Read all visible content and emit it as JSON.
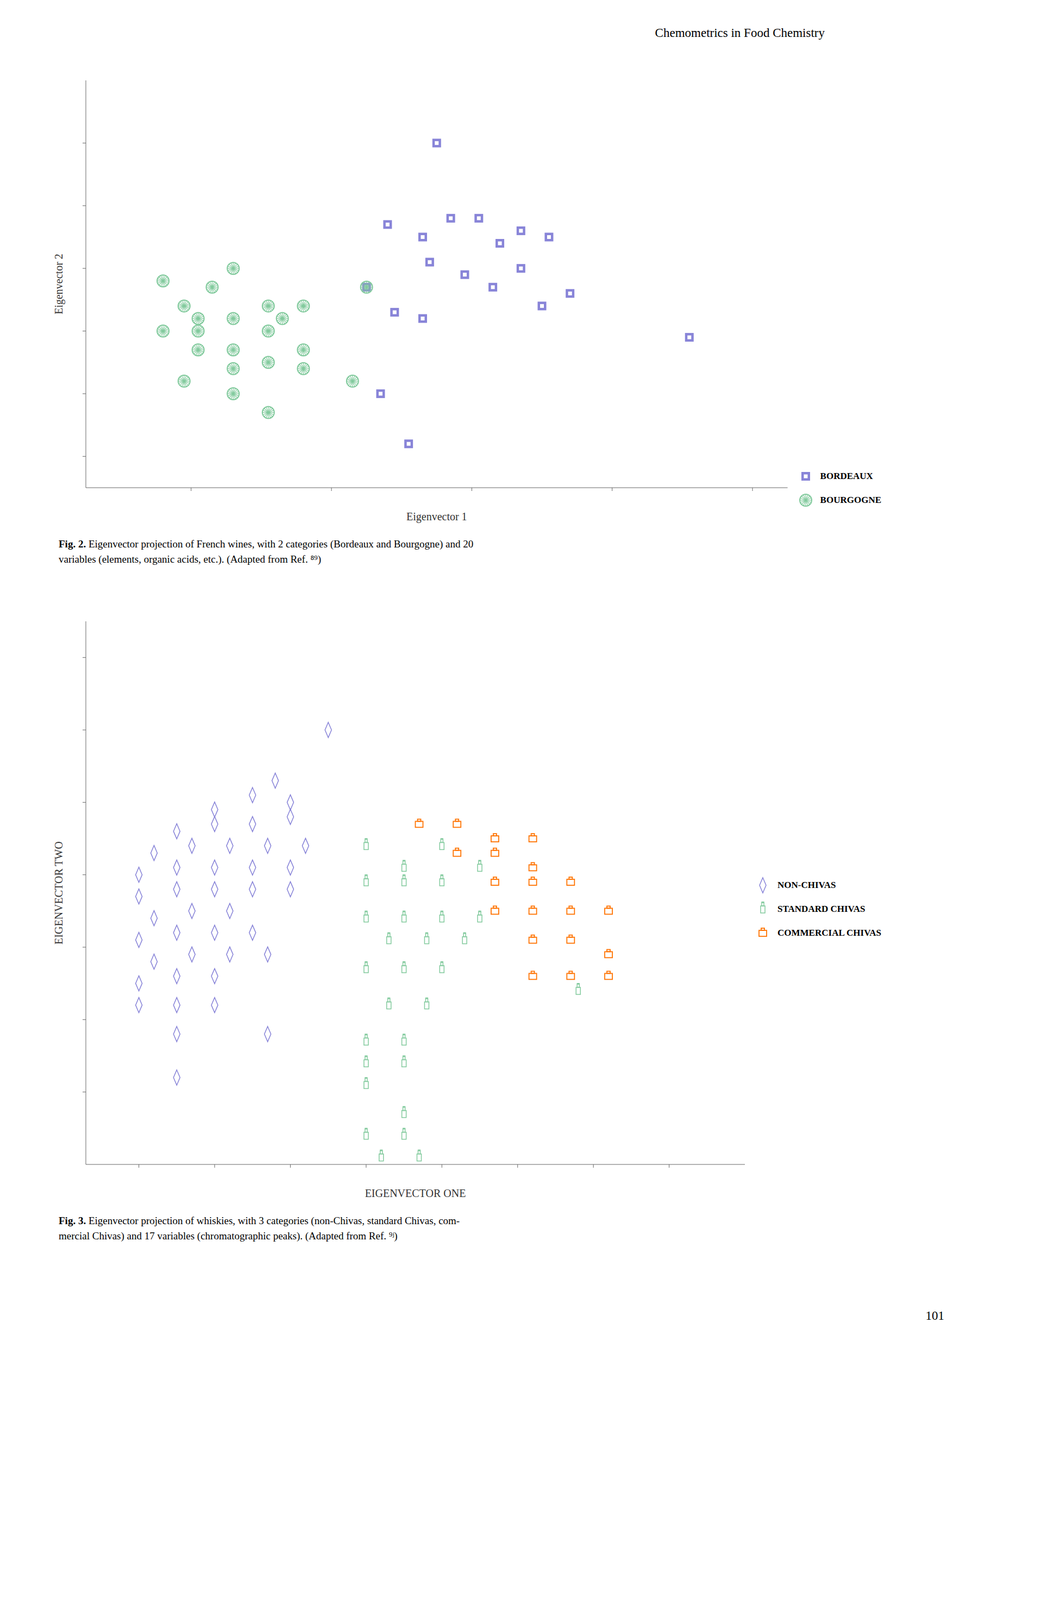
{
  "annotations": [
    "Chemometrics in Food Chemistry",
    "101"
  ],
  "chart_data": [
    {
      "type": "scatter",
      "xlabel": "Eigenvector 1",
      "ylabel": "Eigenvector 2",
      "xlim": [
        0.5,
        10.5
      ],
      "xticks": [
        2,
        4,
        6,
        8,
        10
      ],
      "ylim": [
        0.5,
        7.0
      ],
      "yticks": [
        1,
        2,
        3,
        4,
        5,
        6
      ],
      "tick_labels": false,
      "grid": false,
      "legend": "lower right",
      "annotations": [
        "Fig. 2.",
        "Eigenvector projection of French wines, with 2 categories (Bordeaux and Bourgogne) and 20\nvariables (elements, organic acids, etc.). (Adapted from Ref. ⁸⁹)"
      ],
      "series": [
        {
          "name": "BORDEAUX",
          "marker": "square",
          "values": [
            [
              5.5,
              6.0
            ],
            [
              4.8,
              4.7
            ],
            [
              5.3,
              4.5
            ],
            [
              5.7,
              4.8
            ],
            [
              6.1,
              4.8
            ],
            [
              6.4,
              4.4
            ],
            [
              6.7,
              4.6
            ],
            [
              7.1,
              4.5
            ],
            [
              5.4,
              4.1
            ],
            [
              5.9,
              3.9
            ],
            [
              6.3,
              3.7
            ],
            [
              6.7,
              4.0
            ],
            [
              7.0,
              3.4
            ],
            [
              7.4,
              3.6
            ],
            [
              4.5,
              3.7
            ],
            [
              4.9,
              3.3
            ],
            [
              5.3,
              3.2
            ],
            [
              9.1,
              2.9
            ],
            [
              4.7,
              2.0
            ],
            [
              5.1,
              1.2
            ]
          ]
        },
        {
          "name": "BOURGOGNE",
          "marker": "circle",
          "values": [
            [
              1.6,
              3.8
            ],
            [
              2.3,
              3.7
            ],
            [
              2.6,
              4.0
            ],
            [
              1.9,
              3.4
            ],
            [
              2.1,
              3.2
            ],
            [
              2.6,
              3.2
            ],
            [
              3.1,
              3.4
            ],
            [
              3.3,
              3.2
            ],
            [
              3.6,
              3.4
            ],
            [
              1.6,
              3.0
            ],
            [
              2.1,
              3.0
            ],
            [
              2.6,
              2.7
            ],
            [
              3.1,
              3.0
            ],
            [
              3.6,
              2.7
            ],
            [
              2.1,
              2.7
            ],
            [
              2.6,
              2.4
            ],
            [
              3.1,
              2.5
            ],
            [
              3.6,
              2.4
            ],
            [
              1.9,
              2.2
            ],
            [
              2.6,
              2.0
            ],
            [
              3.1,
              1.7
            ],
            [
              4.5,
              3.7
            ],
            [
              4.3,
              2.2
            ]
          ]
        }
      ]
    },
    {
      "type": "scatter",
      "xlabel": "EIGENVECTOR   ONE",
      "ylabel": "EIGENVECTOR  TWO",
      "xlim": [
        0.3,
        9.0
      ],
      "xticks": [
        1,
        2,
        3,
        4,
        5,
        6,
        7,
        8
      ],
      "ylim": [
        3.0,
        10.5
      ],
      "yticks": [
        4,
        5,
        6,
        7,
        8,
        9,
        10
      ],
      "tick_labels": false,
      "grid": false,
      "legend": "right",
      "annotations": [
        "Fig. 3.",
        "Eigenvector projection of whiskies, with 3 categories (non-Chivas, standard Chivas, com-\nmercial Chivas) and 17 variables (chromatographic peaks). (Adapted from Ref. ⁹ʲ)"
      ],
      "series": [
        {
          "name": "NON-CHIVAS",
          "marker": "diamond",
          "values": [
            [
              3.5,
              9.0
            ],
            [
              2.8,
              8.3
            ],
            [
              2.0,
              7.9
            ],
            [
              2.5,
              8.1
            ],
            [
              3.0,
              8.0
            ],
            [
              1.5,
              7.6
            ],
            [
              2.0,
              7.7
            ],
            [
              2.5,
              7.7
            ],
            [
              3.0,
              7.8
            ],
            [
              1.2,
              7.3
            ],
            [
              1.7,
              7.4
            ],
            [
              2.2,
              7.4
            ],
            [
              2.7,
              7.4
            ],
            [
              3.2,
              7.4
            ],
            [
              1.0,
              7.0
            ],
            [
              1.5,
              7.1
            ],
            [
              2.0,
              7.1
            ],
            [
              2.5,
              7.1
            ],
            [
              3.0,
              7.1
            ],
            [
              1.0,
              6.7
            ],
            [
              1.5,
              6.8
            ],
            [
              2.0,
              6.8
            ],
            [
              2.5,
              6.8
            ],
            [
              3.0,
              6.8
            ],
            [
              1.2,
              6.4
            ],
            [
              1.7,
              6.5
            ],
            [
              2.2,
              6.5
            ],
            [
              1.0,
              6.1
            ],
            [
              1.5,
              6.2
            ],
            [
              2.0,
              6.2
            ],
            [
              2.5,
              6.2
            ],
            [
              1.2,
              5.8
            ],
            [
              1.7,
              5.9
            ],
            [
              2.2,
              5.9
            ],
            [
              2.7,
              5.9
            ],
            [
              1.0,
              5.5
            ],
            [
              1.5,
              5.6
            ],
            [
              2.0,
              5.6
            ],
            [
              1.0,
              5.2
            ],
            [
              1.5,
              5.2
            ],
            [
              2.0,
              5.2
            ],
            [
              1.5,
              4.8
            ],
            [
              2.7,
              4.8
            ],
            [
              1.5,
              4.2
            ]
          ]
        },
        {
          "name": "STANDARD CHIVAS",
          "marker": "bottle",
          "values": [
            [
              4.0,
              7.4
            ],
            [
              4.5,
              7.1
            ],
            [
              5.0,
              7.4
            ],
            [
              5.5,
              7.1
            ],
            [
              4.0,
              6.9
            ],
            [
              4.5,
              6.9
            ],
            [
              5.0,
              6.9
            ],
            [
              4.0,
              6.4
            ],
            [
              4.5,
              6.4
            ],
            [
              5.0,
              6.4
            ],
            [
              5.5,
              6.4
            ],
            [
              4.3,
              6.1
            ],
            [
              4.8,
              6.1
            ],
            [
              5.3,
              6.1
            ],
            [
              4.0,
              5.7
            ],
            [
              4.5,
              5.7
            ],
            [
              5.0,
              5.7
            ],
            [
              4.3,
              5.2
            ],
            [
              4.8,
              5.2
            ],
            [
              4.0,
              4.7
            ],
            [
              4.5,
              4.7
            ],
            [
              4.0,
              4.4
            ],
            [
              4.5,
              4.4
            ],
            [
              4.0,
              4.1
            ],
            [
              6.8,
              5.4
            ],
            [
              4.5,
              3.7
            ],
            [
              4.0,
              3.4
            ],
            [
              4.5,
              3.4
            ],
            [
              4.2,
              3.1
            ],
            [
              4.7,
              3.1
            ]
          ]
        },
        {
          "name": "COMMERCIAL CHIVAS",
          "marker": "flask",
          "values": [
            [
              4.7,
              7.7
            ],
            [
              5.2,
              7.7
            ],
            [
              5.7,
              7.5
            ],
            [
              6.2,
              7.5
            ],
            [
              5.2,
              7.3
            ],
            [
              5.7,
              7.3
            ],
            [
              6.2,
              7.1
            ],
            [
              5.7,
              6.9
            ],
            [
              6.2,
              6.9
            ],
            [
              6.7,
              6.9
            ],
            [
              5.7,
              6.5
            ],
            [
              6.2,
              6.5
            ],
            [
              6.7,
              6.5
            ],
            [
              7.2,
              6.5
            ],
            [
              6.2,
              6.1
            ],
            [
              6.7,
              6.1
            ],
            [
              7.2,
              5.9
            ],
            [
              6.2,
              5.6
            ],
            [
              6.7,
              5.6
            ],
            [
              7.2,
              5.6
            ]
          ]
        }
      ]
    }
  ]
}
